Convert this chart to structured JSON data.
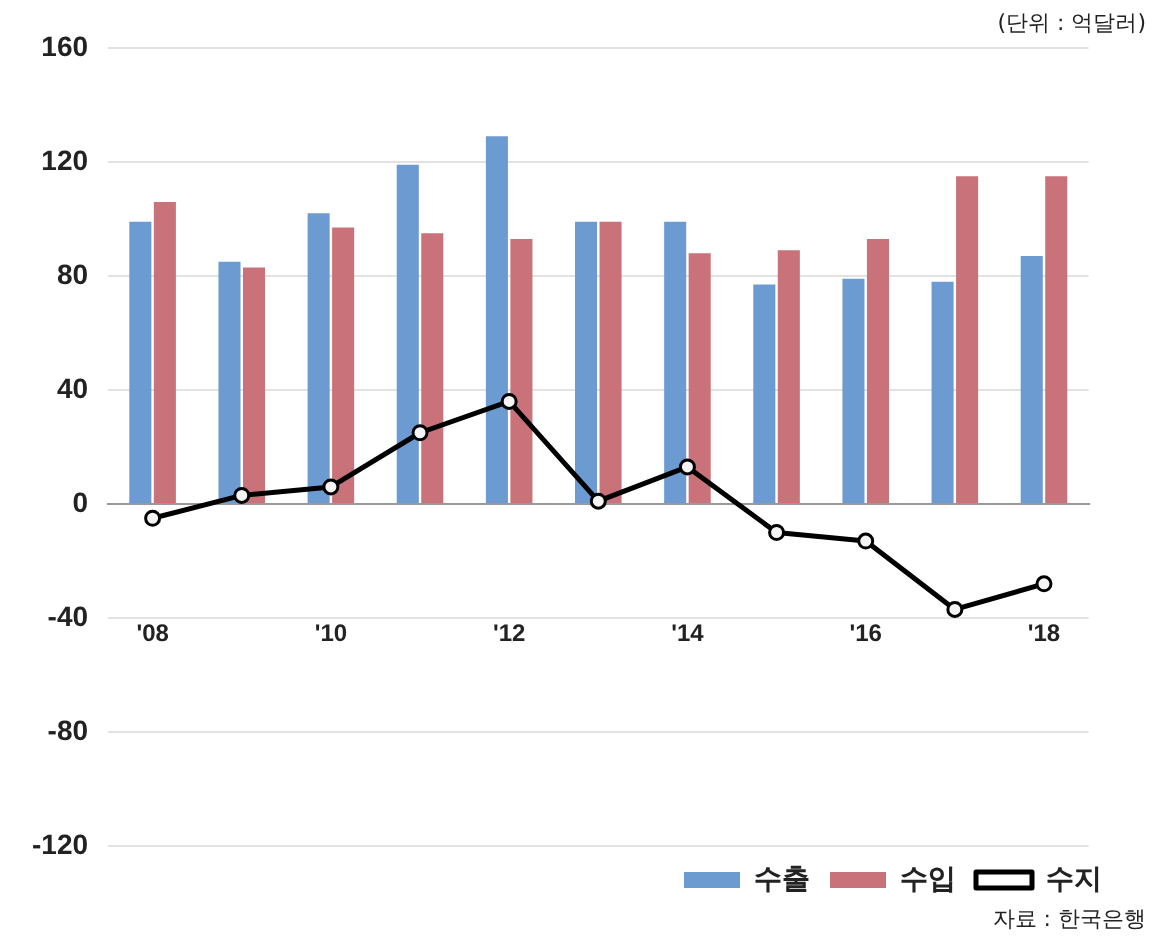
{
  "chart_data": {
    "type": "bar",
    "categories": [
      "'08",
      null,
      "'10",
      null,
      "'12",
      null,
      "'14",
      null,
      "'16",
      null,
      "'18"
    ],
    "series": [
      {
        "name": "수출",
        "color": "#6b9bd1",
        "values": [
          99,
          85,
          102,
          119,
          129,
          99,
          99,
          77,
          79,
          78,
          87
        ]
      },
      {
        "name": "수입",
        "color": "#c9727a",
        "values": [
          106,
          83,
          97,
          95,
          93,
          99,
          88,
          89,
          93,
          115,
          115
        ]
      },
      {
        "name": "수지",
        "type": "line",
        "color": "#000000",
        "values": [
          -5,
          3,
          6,
          25,
          36,
          1,
          13,
          -10,
          -13,
          -37,
          -28
        ]
      }
    ],
    "ylim": [
      -120,
      160
    ],
    "yticks": [
      -120,
      -80,
      -40,
      0,
      40,
      80,
      120,
      160
    ],
    "grid": "y",
    "legend": "bottom right",
    "marker": "circle",
    "annotations": [
      "(단위 : 억달러)",
      "자료 : 한국은행"
    ]
  }
}
